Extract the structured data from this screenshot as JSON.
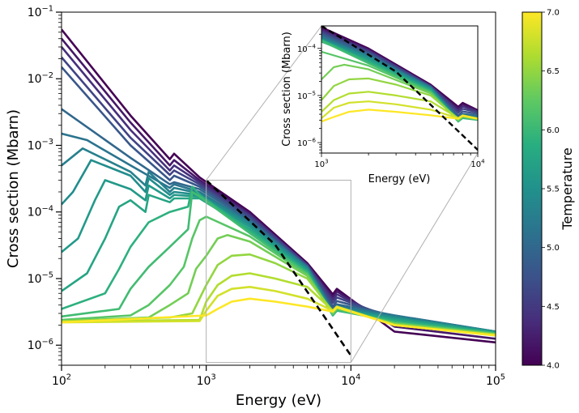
{
  "chart_data": {
    "type": "line",
    "main": {
      "xlabel": "Energy (eV)",
      "ylabel": "Cross section (Mbarn)",
      "xscale": "log",
      "yscale": "log",
      "xlim": [
        100,
        100000
      ],
      "ylim": [
        5e-07,
        0.1
      ],
      "x_ticks": [
        {
          "value": 100,
          "base": "10",
          "exp": "2"
        },
        {
          "value": 1000,
          "base": "10",
          "exp": "3"
        },
        {
          "value": 10000,
          "base": "10",
          "exp": "4"
        },
        {
          "value": 100000,
          "base": "10",
          "exp": "5"
        }
      ],
      "y_ticks": [
        {
          "value": 1e-06,
          "base": "10",
          "exp": "−6"
        },
        {
          "value": 1e-05,
          "base": "10",
          "exp": "−5"
        },
        {
          "value": 0.0001,
          "base": "10",
          "exp": "−4"
        },
        {
          "value": 0.001,
          "base": "10",
          "exp": "−3"
        },
        {
          "value": 0.01,
          "base": "10",
          "exp": "−2"
        },
        {
          "value": 0.1,
          "base": "10",
          "exp": "−1"
        }
      ]
    },
    "inset": {
      "xlabel": "Energy (eV)",
      "ylabel": "Cross section (Mbarn)",
      "xlim": [
        1000,
        10000
      ],
      "ylim": [
        6e-07,
        0.0003
      ],
      "x_ticks": [
        {
          "value": 1000,
          "base": "10",
          "exp": "3"
        },
        {
          "value": 10000,
          "base": "10",
          "exp": "4"
        }
      ],
      "y_ticks": [
        {
          "value": 1e-06,
          "base": "10",
          "exp": "−6"
        },
        {
          "value": 1e-05,
          "base": "10",
          "exp": "−5"
        },
        {
          "value": 0.0001,
          "base": "10",
          "exp": "−4"
        }
      ],
      "zoom_box": {
        "x": [
          1000,
          10000
        ],
        "y": [
          5.5e-07,
          0.0003
        ]
      }
    },
    "colorbar": {
      "label": "Temperature",
      "min": 4.0,
      "max": 7.0,
      "ticks": [
        "4.0",
        "4.5",
        "5.0",
        "5.5",
        "6.0",
        "6.5",
        "7.0"
      ],
      "colormap": "viridis"
    },
    "reference_line": {
      "style": "dashed",
      "color": "#000000",
      "points": [
        [
          1000,
          0.0003
        ],
        [
          3000,
          3.2e-05
        ],
        [
          10000,
          7e-07
        ]
      ]
    },
    "series": [
      {
        "temperature": 4.0,
        "points": [
          [
            100,
            0.055
          ],
          [
            300,
            0.0028
          ],
          [
            560,
            0.00062
          ],
          [
            600,
            0.00075
          ],
          [
            900,
            0.00033
          ],
          [
            2000,
            0.0001
          ],
          [
            5000,
            1.7e-05
          ],
          [
            7500,
            5.8e-06
          ],
          [
            8000,
            7e-06
          ],
          [
            20000,
            1.6e-06
          ],
          [
            100000,
            1.1e-06
          ]
        ]
      },
      {
        "temperature": 4.2,
        "points": [
          [
            100,
            0.04
          ],
          [
            300,
            0.0022
          ],
          [
            560,
            0.0005
          ],
          [
            600,
            0.0006
          ],
          [
            900,
            0.0003
          ],
          [
            2000,
            9.5e-05
          ],
          [
            5000,
            1.6e-05
          ],
          [
            7500,
            5.3e-06
          ],
          [
            8000,
            6.4e-06
          ],
          [
            20000,
            1.9e-06
          ],
          [
            100000,
            1.25e-06
          ]
        ]
      },
      {
        "temperature": 4.4,
        "points": [
          [
            100,
            0.03
          ],
          [
            300,
            0.0017
          ],
          [
            560,
            0.00042
          ],
          [
            600,
            0.0005
          ],
          [
            900,
            0.00028
          ],
          [
            2000,
            9e-05
          ],
          [
            5000,
            1.6e-05
          ],
          [
            7500,
            4.8e-06
          ],
          [
            8000,
            5.8e-06
          ],
          [
            20000,
            2.2e-06
          ],
          [
            100000,
            1.4e-06
          ]
        ]
      },
      {
        "temperature": 4.6,
        "points": [
          [
            100,
            0.021
          ],
          [
            300,
            0.0013
          ],
          [
            560,
            0.00036
          ],
          [
            600,
            0.00042
          ],
          [
            900,
            0.00026
          ],
          [
            2000,
            8.6e-05
          ],
          [
            5000,
            1.6e-05
          ],
          [
            7500,
            4.3e-06
          ],
          [
            8000,
            5.2e-06
          ],
          [
            20000,
            2.5e-06
          ],
          [
            100000,
            1.5e-06
          ]
        ]
      },
      {
        "temperature": 4.8,
        "points": [
          [
            100,
            0.015
          ],
          [
            300,
            0.001
          ],
          [
            560,
            0.0003
          ],
          [
            600,
            0.00035
          ],
          [
            900,
            0.00024
          ],
          [
            2000,
            8e-05
          ],
          [
            5000,
            1.5e-05
          ],
          [
            7500,
            3.8e-06
          ],
          [
            8000,
            4.6e-06
          ],
          [
            20000,
            2.7e-06
          ],
          [
            100000,
            1.55e-06
          ]
        ]
      },
      {
        "temperature": 5.0,
        "points": [
          [
            100,
            0.0035
          ],
          [
            300,
            0.00065
          ],
          [
            560,
            0.00026
          ],
          [
            600,
            0.00028
          ],
          [
            900,
            0.00022
          ],
          [
            2000,
            7.5e-05
          ],
          [
            5000,
            1.5e-05
          ],
          [
            7500,
            3.4e-06
          ],
          [
            8000,
            4.1e-06
          ],
          [
            20000,
            2.8e-06
          ],
          [
            100000,
            1.6e-06
          ]
        ]
      },
      {
        "temperature": 5.15,
        "points": [
          [
            100,
            0.0015
          ],
          [
            150,
            0.0012
          ],
          [
            300,
            0.0005
          ],
          [
            560,
            0.00023
          ],
          [
            600,
            0.00026
          ],
          [
            900,
            0.0002
          ],
          [
            2000,
            7e-05
          ],
          [
            5000,
            1.5e-05
          ],
          [
            7500,
            3.2e-06
          ],
          [
            8000,
            3.9e-06
          ],
          [
            20000,
            2.8e-06
          ],
          [
            100000,
            1.6e-06
          ]
        ]
      },
      {
        "temperature": 5.3,
        "points": [
          [
            100,
            0.0005
          ],
          [
            140,
            0.0009
          ],
          [
            300,
            0.0004
          ],
          [
            380,
            0.00025
          ],
          [
            400,
            0.0004
          ],
          [
            560,
            0.0002
          ],
          [
            600,
            0.00023
          ],
          [
            900,
            0.00019
          ],
          [
            2000,
            6.8e-05
          ],
          [
            5000,
            1.45e-05
          ],
          [
            7500,
            3.1e-06
          ],
          [
            8000,
            3.7e-06
          ],
          [
            20000,
            2.7e-06
          ],
          [
            100000,
            1.6e-06
          ]
        ]
      },
      {
        "temperature": 5.45,
        "points": [
          [
            100,
            0.00013
          ],
          [
            120,
            0.0002
          ],
          [
            160,
            0.0006
          ],
          [
            300,
            0.00035
          ],
          [
            380,
            0.0002
          ],
          [
            400,
            0.00032
          ],
          [
            560,
            0.00018
          ],
          [
            600,
            0.0002
          ],
          [
            900,
            0.00018
          ],
          [
            2000,
            6.5e-05
          ],
          [
            5000,
            1.4e-05
          ],
          [
            7500,
            3e-06
          ],
          [
            8000,
            3.6e-06
          ],
          [
            20000,
            2.6e-06
          ],
          [
            100000,
            1.6e-06
          ]
        ]
      },
      {
        "temperature": 5.6,
        "points": [
          [
            100,
            2.5e-05
          ],
          [
            130,
            4e-05
          ],
          [
            170,
            0.00015
          ],
          [
            200,
            0.0003
          ],
          [
            300,
            0.00022
          ],
          [
            380,
            0.00015
          ],
          [
            400,
            0.00025
          ],
          [
            560,
            0.00016
          ],
          [
            600,
            0.00018
          ],
          [
            900,
            0.00017
          ],
          [
            2000,
            6e-05
          ],
          [
            5000,
            1.35e-05
          ],
          [
            7500,
            2.9e-06
          ],
          [
            8000,
            3.5e-06
          ],
          [
            20000,
            2.5e-06
          ],
          [
            100000,
            1.58e-06
          ]
        ]
      },
      {
        "temperature": 5.75,
        "points": [
          [
            100,
            6.5e-06
          ],
          [
            150,
            1.2e-05
          ],
          [
            200,
            4e-05
          ],
          [
            250,
            0.00012
          ],
          [
            300,
            0.00015
          ],
          [
            380,
            0.0001
          ],
          [
            400,
            0.00018
          ],
          [
            560,
            0.00014
          ],
          [
            600,
            0.00016
          ],
          [
            900,
            0.00016
          ],
          [
            2000,
            5.5e-05
          ],
          [
            5000,
            1.3e-05
          ],
          [
            7500,
            2.8e-06
          ],
          [
            8000,
            3.4e-06
          ],
          [
            20000,
            2.4e-06
          ],
          [
            100000,
            1.55e-06
          ]
        ]
      },
      {
        "temperature": 5.9,
        "points": [
          [
            100,
            3.5e-06
          ],
          [
            200,
            6e-06
          ],
          [
            250,
            1.4e-05
          ],
          [
            300,
            3e-05
          ],
          [
            400,
            7e-05
          ],
          [
            560,
            0.0001
          ],
          [
            750,
            0.00012
          ],
          [
            800,
            0.00024
          ],
          [
            900,
            0.00018
          ],
          [
            2000,
            5.2e-05
          ],
          [
            5000,
            1.25e-05
          ],
          [
            7500,
            2.8e-06
          ],
          [
            8000,
            3.3e-06
          ],
          [
            20000,
            2.3e-06
          ],
          [
            100000,
            1.52e-06
          ]
        ]
      },
      {
        "temperature": 6.05,
        "points": [
          [
            100,
            2.7e-06
          ],
          [
            250,
            3.5e-06
          ],
          [
            300,
            7e-06
          ],
          [
            400,
            1.5e-05
          ],
          [
            560,
            3e-05
          ],
          [
            750,
            5.5e-05
          ],
          [
            800,
            0.0002
          ],
          [
            900,
            0.00017
          ],
          [
            2000,
            4.8e-05
          ],
          [
            5000,
            1.2e-05
          ],
          [
            7500,
            2.9e-06
          ],
          [
            8000,
            3.4e-06
          ],
          [
            20000,
            2.2e-06
          ],
          [
            100000,
            1.5e-06
          ]
        ]
      },
      {
        "temperature": 6.2,
        "points": [
          [
            100,
            2.4e-06
          ],
          [
            300,
            2.8e-06
          ],
          [
            400,
            4e-06
          ],
          [
            560,
            8e-06
          ],
          [
            700,
            1.5e-05
          ],
          [
            800,
            4e-05
          ],
          [
            900,
            7.5e-05
          ],
          [
            1000,
            8.5e-05
          ],
          [
            2000,
            4.3e-05
          ],
          [
            5000,
            1.15e-05
          ],
          [
            7500,
            2.9e-06
          ],
          [
            8000,
            3.5e-06
          ],
          [
            20000,
            2.15e-06
          ],
          [
            100000,
            1.48e-06
          ]
        ]
      },
      {
        "temperature": 6.35,
        "points": [
          [
            100,
            2.3e-06
          ],
          [
            400,
            2.6e-06
          ],
          [
            560,
            4e-06
          ],
          [
            750,
            6e-06
          ],
          [
            850,
            1.4e-05
          ],
          [
            1000,
            2.2e-05
          ],
          [
            1200,
            4e-05
          ],
          [
            1400,
            4.5e-05
          ],
          [
            2000,
            3.6e-05
          ],
          [
            5000,
            1.1e-05
          ],
          [
            7500,
            3e-06
          ],
          [
            8000,
            3.6e-06
          ],
          [
            20000,
            2.1e-06
          ],
          [
            100000,
            1.46e-06
          ]
        ]
      },
      {
        "temperature": 6.5,
        "points": [
          [
            100,
            2.3e-06
          ],
          [
            560,
            2.6e-06
          ],
          [
            800,
            3e-06
          ],
          [
            1000,
            8e-06
          ],
          [
            1200,
            1.6e-05
          ],
          [
            1500,
            2.2e-05
          ],
          [
            2000,
            2.3e-05
          ],
          [
            3000,
            1.7e-05
          ],
          [
            5000,
            1e-05
          ],
          [
            7500,
            3.2e-06
          ],
          [
            8000,
            3.7e-06
          ],
          [
            20000,
            2.05e-06
          ],
          [
            100000,
            1.45e-06
          ]
        ]
      },
      {
        "temperature": 6.65,
        "points": [
          [
            100,
            2.25e-06
          ],
          [
            900,
            2.4e-06
          ],
          [
            1000,
            4.5e-06
          ],
          [
            1200,
            8e-06
          ],
          [
            1500,
            1.1e-05
          ],
          [
            2000,
            1.2e-05
          ],
          [
            3000,
            1e-05
          ],
          [
            5000,
            7.5e-06
          ],
          [
            7500,
            3.3e-06
          ],
          [
            8000,
            3.8e-06
          ],
          [
            20000,
            2e-06
          ],
          [
            100000,
            1.42e-06
          ]
        ]
      },
      {
        "temperature": 6.8,
        "points": [
          [
            100,
            2.2e-06
          ],
          [
            900,
            2.3e-06
          ],
          [
            1000,
            3.3e-06
          ],
          [
            1200,
            5.5e-06
          ],
          [
            1500,
            7e-06
          ],
          [
            2000,
            7.5e-06
          ],
          [
            3000,
            6.5e-06
          ],
          [
            5000,
            5e-06
          ],
          [
            7500,
            3.3e-06
          ],
          [
            8000,
            3.8e-06
          ],
          [
            20000,
            2e-06
          ],
          [
            100000,
            1.4e-06
          ]
        ]
      },
      {
        "temperature": 7.0,
        "points": [
          [
            100,
            2.2e-06
          ],
          [
            1000,
            2.8e-06
          ],
          [
            1200,
            3.5e-06
          ],
          [
            1500,
            4.5e-06
          ],
          [
            2000,
            5e-06
          ],
          [
            3000,
            4.5e-06
          ],
          [
            5000,
            3.8e-06
          ],
          [
            7500,
            3.2e-06
          ],
          [
            8000,
            3.7e-06
          ],
          [
            20000,
            2e-06
          ],
          [
            100000,
            1.4e-06
          ]
        ]
      }
    ]
  }
}
